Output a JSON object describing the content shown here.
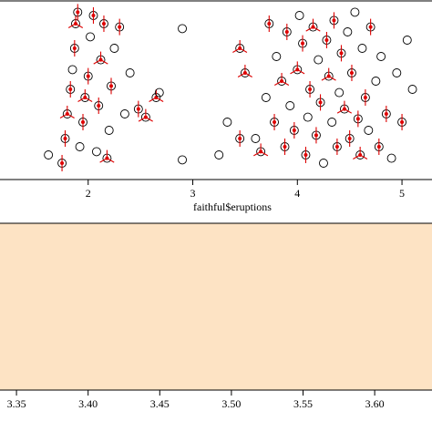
{
  "chart_data": [
    {
      "type": "scatter",
      "xlabel": "faithful$eruptions",
      "x": [
        1.62,
        1.75,
        1.78,
        1.8,
        1.83,
        1.85,
        1.87,
        1.88,
        1.9,
        1.92,
        1.95,
        1.97,
        2.0,
        2.02,
        2.05,
        2.08,
        2.1,
        2.12,
        2.15,
        2.18,
        2.2,
        2.22,
        2.25,
        2.3,
        2.35,
        2.4,
        2.48,
        2.55,
        2.65,
        2.68,
        2.9,
        2.9,
        3.25,
        3.33,
        3.45,
        3.45,
        3.5,
        3.6,
        3.65,
        3.7,
        3.73,
        3.78,
        3.8,
        3.85,
        3.88,
        3.9,
        3.93,
        3.97,
        4.0,
        4.02,
        4.05,
        4.08,
        4.1,
        4.12,
        4.15,
        4.18,
        4.2,
        4.22,
        4.25,
        4.28,
        4.3,
        4.33,
        4.35,
        4.38,
        4.4,
        4.42,
        4.45,
        4.48,
        4.5,
        4.52,
        4.55,
        4.58,
        4.6,
        4.62,
        4.65,
        4.68,
        4.7,
        4.75,
        4.78,
        4.8,
        4.85,
        4.9,
        4.95,
        5.0,
        5.05,
        5.1
      ],
      "values": [
        0.1,
        0.05,
        0.2,
        0.35,
        0.5,
        0.62,
        0.75,
        0.9,
        0.97,
        0.15,
        0.3,
        0.45,
        0.58,
        0.82,
        0.95,
        0.12,
        0.4,
        0.68,
        0.9,
        0.08,
        0.25,
        0.52,
        0.75,
        0.88,
        0.35,
        0.6,
        0.38,
        0.33,
        0.45,
        0.48,
        0.87,
        0.07,
        0.1,
        0.3,
        0.2,
        0.75,
        0.6,
        0.2,
        0.12,
        0.45,
        0.9,
        0.3,
        0.7,
        0.55,
        0.15,
        0.85,
        0.4,
        0.25,
        0.62,
        0.95,
        0.78,
        0.1,
        0.33,
        0.5,
        0.88,
        0.22,
        0.68,
        0.42,
        0.05,
        0.8,
        0.58,
        0.3,
        0.92,
        0.15,
        0.48,
        0.72,
        0.38,
        0.85,
        0.2,
        0.6,
        0.97,
        0.32,
        0.1,
        0.75,
        0.45,
        0.25,
        0.88,
        0.55,
        0.15,
        0.7,
        0.35,
        0.08,
        0.6,
        0.3,
        0.8,
        0.5
      ],
      "petals": [
        1,
        2,
        2,
        3,
        2,
        1,
        2,
        3,
        2,
        1,
        2,
        3,
        2,
        1,
        2,
        1,
        2,
        3,
        2,
        3,
        1,
        2,
        1,
        2,
        1,
        1,
        2,
        3,
        3,
        1,
        1,
        1,
        1,
        1,
        2,
        3,
        3,
        1,
        3,
        1,
        2,
        2,
        1,
        3,
        2,
        2,
        1,
        2,
        3,
        1,
        2,
        2,
        1,
        2,
        3,
        2,
        1,
        2,
        1,
        2,
        3,
        1,
        2,
        2,
        1,
        2,
        3,
        1,
        2,
        2,
        1,
        2,
        3,
        1,
        2,
        1,
        2,
        1,
        2,
        1,
        2,
        1,
        1,
        2,
        1,
        1
      ],
      "xlim": [
        1.157,
        5.287
      ],
      "ylim": [
        0,
        1
      ],
      "xticks": [
        2,
        3,
        4,
        5
      ],
      "color": "#000000",
      "petal_color": "#dd0000"
    },
    {
      "type": "empty",
      "fill": "#fde3c4",
      "xlim": [
        3.3385,
        3.64
      ],
      "xticks": [
        3.35,
        {
          "value": 3.4,
          "label": "3.40"
        },
        3.45,
        {
          "value": 3.5,
          "label": "3.50"
        },
        3.55,
        {
          "value": 3.6,
          "label": "3.60"
        }
      ]
    }
  ]
}
